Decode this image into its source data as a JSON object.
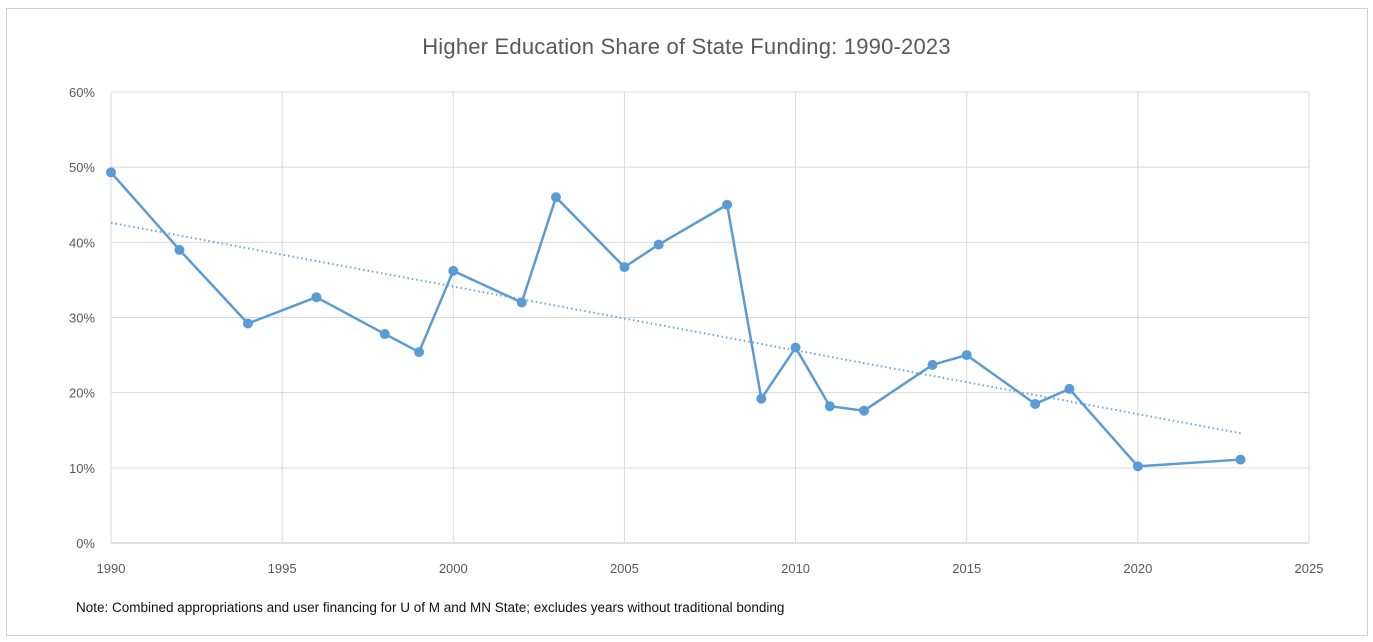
{
  "chart_data": {
    "type": "line",
    "title": "Higher Education Share of State Funding: 1990-2023",
    "note": "Note: Combined appropriations and user financing for U of M and MN State; excludes years without traditional bonding",
    "xlabel": "",
    "ylabel": "",
    "xlim": [
      1990,
      2025
    ],
    "ylim": [
      0,
      60
    ],
    "x_ticks": [
      1990,
      1995,
      2000,
      2005,
      2010,
      2015,
      2020,
      2025
    ],
    "x_tick_labels": [
      "1990",
      "1995",
      "2000",
      "2005",
      "2010",
      "2015",
      "2020",
      "2025"
    ],
    "y_ticks": [
      0,
      10,
      20,
      30,
      40,
      50,
      60
    ],
    "y_tick_labels": [
      "0%",
      "10%",
      "20%",
      "30%",
      "40%",
      "50%",
      "60%"
    ],
    "grid": true,
    "series": [
      {
        "color": "#5b9bd5",
        "x": [
          1990,
          1992,
          1994,
          1996,
          1998,
          1999,
          2000,
          2002,
          2003,
          2005,
          2006,
          2008,
          2009,
          2010,
          2011,
          2012,
          2014,
          2015,
          2017,
          2018,
          2020,
          2023
        ],
        "values": [
          49.3,
          39.0,
          29.2,
          32.7,
          27.8,
          25.4,
          36.2,
          32.0,
          46.0,
          36.7,
          39.7,
          45.0,
          19.2,
          26.0,
          18.2,
          17.6,
          23.7,
          25.0,
          18.5,
          20.5,
          10.2,
          11.1
        ]
      }
    ],
    "trendline": {
      "style": "dotted",
      "color": "#5b9bd5",
      "x": [
        1990,
        2023
      ],
      "values": [
        42.6,
        14.6
      ]
    }
  }
}
